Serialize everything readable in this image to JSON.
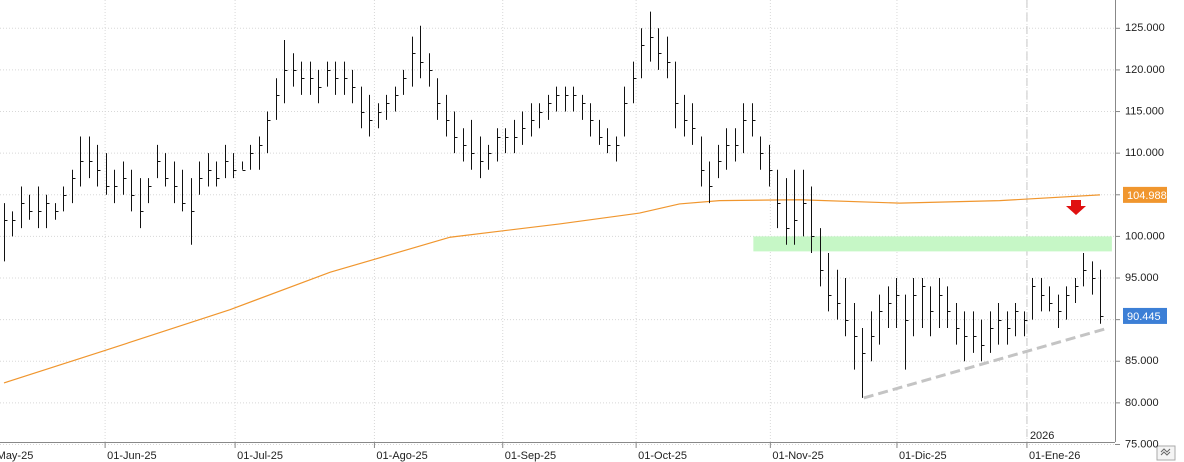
{
  "chart_data": {
    "type": "ohlc",
    "xlim": [
      0,
      131
    ],
    "ylim": [
      75.3,
      128.4
    ],
    "yticks": [
      {
        "value": 75,
        "label": "75.000"
      },
      {
        "value": 80,
        "label": "80.000"
      },
      {
        "value": 85,
        "label": "85.000"
      },
      {
        "value": 90,
        "label": "90.000"
      },
      {
        "value": 95,
        "label": "95.000"
      },
      {
        "value": 100,
        "label": "100.000"
      },
      {
        "value": 105,
        "label": "105.000"
      },
      {
        "value": 110,
        "label": "110.000"
      },
      {
        "value": 115,
        "label": "115.000"
      },
      {
        "value": 120,
        "label": "120.000"
      },
      {
        "value": 125,
        "label": "125.000"
      }
    ],
    "xticks": [
      {
        "value": -1.1,
        "label": "May-25"
      },
      {
        "value": 11.9,
        "label": "01-Jun-25"
      },
      {
        "value": 27.2,
        "label": "01-Jul-25"
      },
      {
        "value": 43.6,
        "label": "01-Ago-25"
      },
      {
        "value": 58.7,
        "label": "01-Sep-25"
      },
      {
        "value": 74.4,
        "label": "01-Oct-25"
      },
      {
        "value": 90.2,
        "label": "01-Nov-25"
      },
      {
        "value": 105.1,
        "label": "01-Dic-25"
      },
      {
        "value": 120.4,
        "label": "01-Ene-26"
      }
    ],
    "grid": true,
    "year_marker": {
      "x": 120.4,
      "label": "2026"
    },
    "bars": {
      "color": "#111111",
      "high": [
        104,
        103,
        106,
        105,
        106,
        105,
        104,
        106,
        108,
        112,
        112,
        111,
        110,
        108,
        109,
        108,
        107,
        107,
        111,
        110,
        109,
        108,
        107,
        109,
        110,
        109,
        111,
        110,
        109,
        111,
        112,
        115,
        119,
        123.6,
        122,
        121,
        121,
        120,
        121,
        121,
        121,
        120,
        118,
        117,
        116,
        117,
        118,
        120,
        124,
        125.3,
        122,
        119,
        117,
        115,
        113,
        114,
        112,
        111,
        113,
        113,
        114,
        115,
        116,
        116,
        117,
        118,
        118,
        118,
        117,
        116,
        114,
        113,
        112,
        118,
        121,
        125,
        127,
        125,
        124,
        121,
        117,
        116,
        112,
        109,
        111,
        113,
        113,
        116,
        116,
        112,
        111,
        108,
        107,
        108,
        108,
        106,
        101,
        98,
        96,
        95,
        92,
        89,
        91,
        93,
        94,
        95,
        93,
        95,
        95,
        94,
        95,
        94,
        92,
        91,
        91,
        90,
        91,
        92,
        91,
        92,
        91,
        95,
        95,
        94,
        93,
        94,
        95,
        98,
        97,
        96
      ],
      "low": [
        97,
        100,
        101,
        102,
        101,
        101,
        102,
        103,
        104,
        106,
        107,
        106,
        105,
        104,
        105,
        103,
        101,
        104,
        107,
        106,
        104,
        103,
        99,
        105,
        106,
        106,
        107,
        107,
        108,
        108,
        108,
        110,
        114,
        116,
        118,
        117,
        117,
        116,
        118,
        117,
        117,
        116,
        113,
        112,
        113,
        114,
        115,
        117,
        118,
        119,
        118,
        114,
        112,
        110,
        109,
        108,
        107,
        108,
        109,
        110,
        110,
        111,
        112,
        113,
        114,
        115,
        115,
        115,
        114,
        112,
        111,
        110,
        109,
        112,
        116,
        119,
        121,
        120,
        119,
        113,
        112,
        111,
        106,
        104,
        107,
        108,
        109,
        110,
        112,
        108,
        106,
        101,
        99,
        99,
        100,
        98,
        94,
        91,
        90,
        88,
        84,
        80.6,
        85,
        87,
        89,
        89,
        84,
        88,
        89,
        88,
        89,
        89,
        87,
        85,
        86,
        85,
        86,
        87,
        87,
        88,
        88,
        90,
        91,
        91,
        89,
        90,
        92,
        94,
        93,
        89.5
      ],
      "close": [
        102,
        102,
        104,
        103,
        103,
        104,
        103,
        105,
        107,
        109,
        109,
        108,
        106,
        106,
        107,
        105,
        103,
        106,
        109,
        107,
        106,
        104,
        103,
        107,
        108,
        107,
        109,
        108,
        108,
        110,
        111,
        114,
        117,
        120,
        120,
        119,
        119,
        118,
        120,
        119,
        119,
        118,
        115,
        114,
        115,
        116,
        117,
        119,
        122,
        121,
        120,
        116,
        114,
        112,
        111,
        110,
        109,
        110,
        112,
        112,
        112,
        113,
        114,
        115,
        116,
        117,
        117,
        117,
        116,
        114,
        112,
        111,
        111,
        116,
        119,
        123,
        124,
        122,
        121,
        116,
        114,
        113,
        108,
        106,
        109,
        111,
        111,
        114,
        114,
        110,
        108,
        104,
        101,
        102,
        104,
        100,
        96,
        93,
        92,
        90,
        88,
        86,
        88,
        91,
        92,
        93,
        90,
        93,
        94,
        91,
        93,
        91,
        89,
        88,
        88,
        87,
        89,
        90,
        89,
        91,
        90,
        94,
        93,
        92,
        91,
        93,
        94,
        96,
        95,
        90.445
      ],
      "last_label": "90.445",
      "label_color": "#3c7fd6"
    },
    "lines": [
      {
        "color": "#f0962e",
        "x": [
          0,
          11.3,
          26.6,
          38.4,
          52.5,
          65.4,
          74.8,
          79.5,
          84.2,
          93.6,
          105.4,
          117.2,
          129
        ],
        "values": [
          82.4,
          86.1,
          91.2,
          95.7,
          99.9,
          101.5,
          102.8,
          103.9,
          104.3,
          104.4,
          104.0,
          104.3,
          104.988
        ],
        "last_label": "104.988"
      }
    ],
    "zone": {
      "color": "#c6f7c6",
      "x": [
        88.2,
        130.4
      ],
      "values": [
        98.2,
        100.0
      ]
    },
    "trendline": {
      "color": "#c4c4c4",
      "x": [
        101.2,
        130
      ],
      "values": [
        80.6,
        89
      ]
    }
  }
}
